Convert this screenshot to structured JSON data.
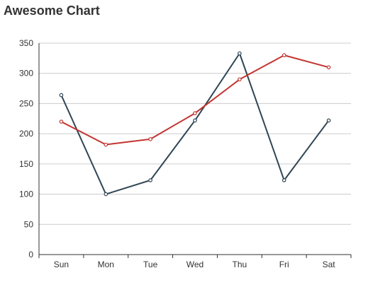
{
  "chart_data": {
    "type": "line",
    "title": "Awesome Chart",
    "categories": [
      "Sun",
      "Mon",
      "Tue",
      "Wed",
      "Thu",
      "Fri",
      "Sat"
    ],
    "series": [
      {
        "values": [
          264,
          100,
          123,
          222,
          333,
          123,
          222
        ],
        "color": "#2f4554"
      },
      {
        "values": [
          220,
          182,
          191,
          234,
          290,
          330,
          310
        ],
        "color": "#c23531"
      }
    ],
    "yticks": [
      0,
      50,
      100,
      150,
      200,
      250,
      300,
      350
    ],
    "ylim": [
      0,
      350
    ],
    "grid": true,
    "xlabel": "",
    "ylabel": ""
  }
}
